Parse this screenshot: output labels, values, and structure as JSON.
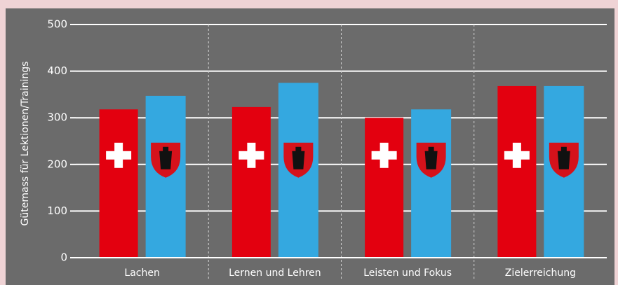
{
  "chart_data": {
    "type": "bar",
    "y_label": "Gütemass für Lektionen/Trainings",
    "categories": [
      "Lachen",
      "Lernen und Lehren",
      "Leisten und Fokus",
      "Zielerreichung"
    ],
    "series": [
      {
        "color": "#e3000f",
        "values": [
          318,
          323,
          300,
          368
        ]
      },
      {
        "color": "#34a8e0",
        "values": [
          347,
          375,
          318,
          368
        ]
      }
    ],
    "ylim": [
      0,
      500
    ],
    "yticks": [
      0,
      100,
      200,
      300,
      400,
      500
    ],
    "grid": true
  }
}
